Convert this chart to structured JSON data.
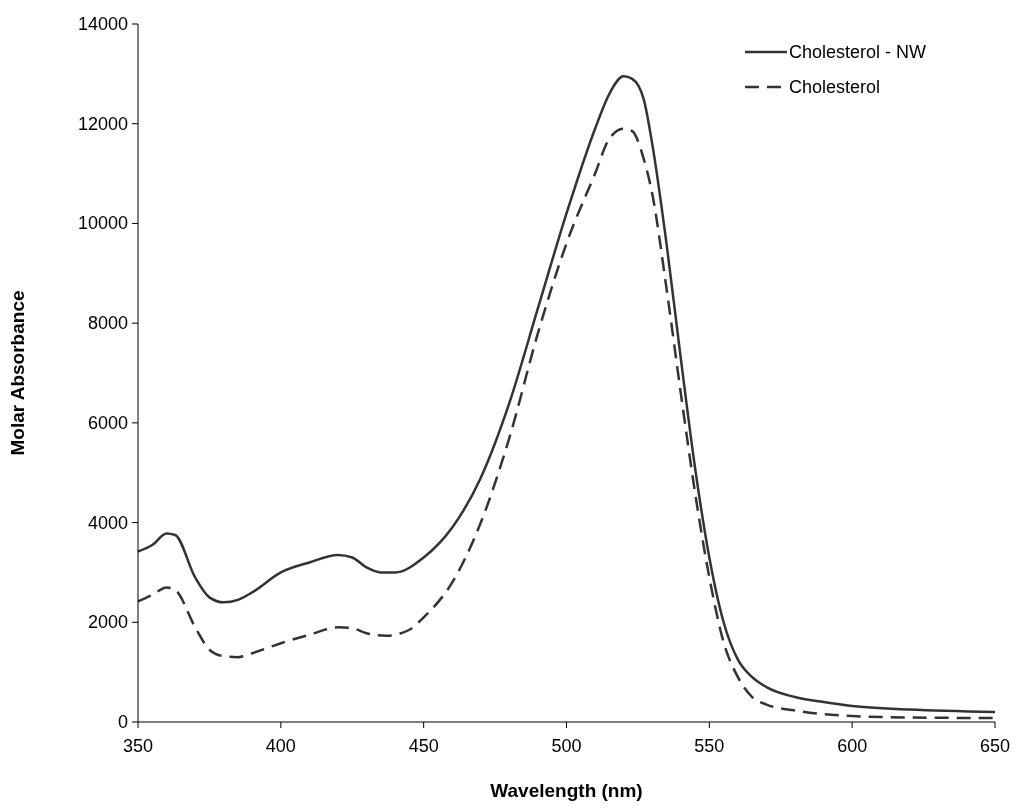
{
  "chart_data": {
    "type": "line",
    "xlabel": "Wavelength (nm)",
    "ylabel": "Molar Absorbance",
    "xlim": [
      350,
      650
    ],
    "xticks": [
      350,
      400,
      450,
      500,
      550,
      600,
      650
    ],
    "ylim": [
      0,
      14000
    ],
    "yticks": [
      0,
      2000,
      4000,
      6000,
      8000,
      10000,
      12000,
      14000
    ],
    "grid": false,
    "legend": "top right",
    "marker": "none",
    "series": [
      {
        "name": "Cholesterol - NW",
        "color": "#333333",
        "line_style": "solid",
        "x": [
          350,
          355,
          360,
          363,
          370,
          375,
          380,
          385,
          390,
          400,
          410,
          420,
          425,
          430,
          435,
          440,
          450,
          460,
          470,
          480,
          490,
          500,
          510,
          515,
          520,
          523,
          527,
          530,
          535,
          540,
          545,
          550,
          555,
          560,
          565,
          570,
          580,
          590,
          600,
          620,
          650
        ],
        "values": [
          3420,
          3550,
          3780,
          3750,
          2900,
          2500,
          2400,
          2450,
          2600,
          3000,
          3200,
          3350,
          3300,
          3100,
          3000,
          3000,
          3300,
          3900,
          4900,
          6400,
          8300,
          10200,
          11900,
          12600,
          12950,
          12900,
          12500,
          11600,
          9600,
          7300,
          5100,
          3300,
          2000,
          1250,
          900,
          700,
          500,
          400,
          320,
          250,
          200
        ]
      },
      {
        "name": "Cholesterol",
        "color": "#333333",
        "line_style": "dashed",
        "x": [
          350,
          355,
          360,
          363,
          370,
          375,
          380,
          385,
          390,
          400,
          410,
          420,
          425,
          430,
          437,
          445,
          450,
          460,
          470,
          480,
          490,
          500,
          510,
          515,
          520,
          523,
          527,
          530,
          535,
          540,
          545,
          550,
          555,
          560,
          565,
          570,
          580,
          600,
          620,
          650
        ],
        "values": [
          2420,
          2550,
          2700,
          2650,
          1900,
          1450,
          1320,
          1300,
          1380,
          1580,
          1750,
          1900,
          1880,
          1780,
          1730,
          1850,
          2100,
          2800,
          4000,
          5700,
          7800,
          9600,
          11000,
          11700,
          11900,
          11850,
          11300,
          10600,
          8700,
          6600,
          4600,
          2900,
          1600,
          900,
          500,
          350,
          230,
          120,
          90,
          80
        ]
      }
    ]
  }
}
